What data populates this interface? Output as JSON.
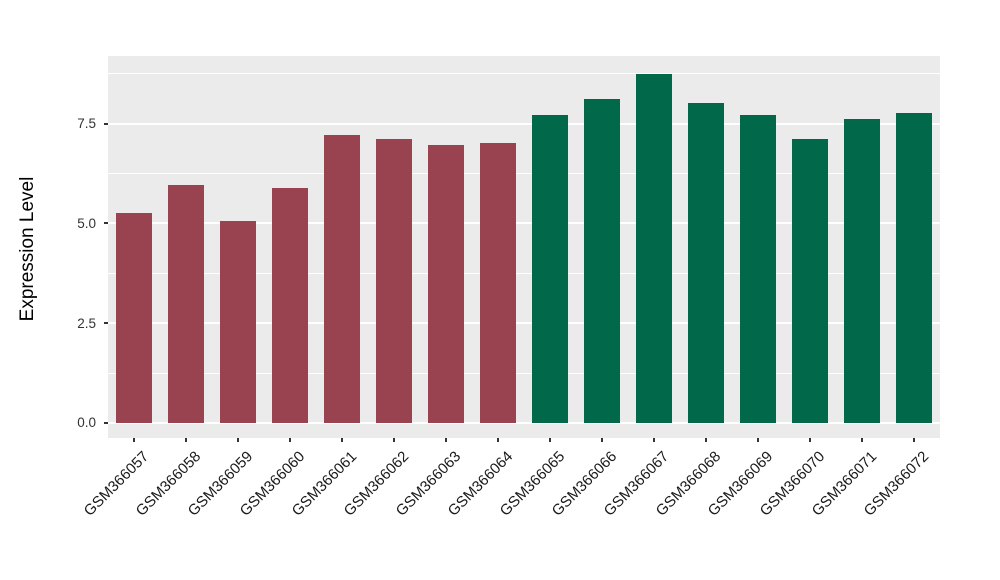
{
  "figure": {
    "background_color": "#ffffff"
  },
  "chart_data": {
    "type": "bar",
    "title": "",
    "xlabel": "",
    "ylabel": "Expression Level",
    "categories": [
      "GSM366057",
      "GSM366058",
      "GSM366059",
      "GSM366060",
      "GSM366061",
      "GSM366062",
      "GSM366063",
      "GSM366064",
      "GSM366065",
      "GSM366066",
      "GSM366067",
      "GSM366068",
      "GSM366069",
      "GSM366070",
      "GSM366071",
      "GSM366072"
    ],
    "values": [
      5.27,
      5.97,
      5.07,
      5.9,
      7.21,
      7.12,
      6.98,
      7.02,
      7.73,
      8.13,
      8.74,
      8.01,
      7.71,
      7.13,
      7.63,
      7.78
    ],
    "bar_colors": [
      "#9A4350",
      "#9A4350",
      "#9A4350",
      "#9A4350",
      "#9A4350",
      "#9A4350",
      "#9A4350",
      "#9A4350",
      "#01684A",
      "#01684A",
      "#01684A",
      "#01684A",
      "#01684A",
      "#01684A",
      "#01684A",
      "#01684A"
    ],
    "group_colors": {
      "left_group": "#9A4350",
      "right_group": "#01684A"
    },
    "yticks": [
      0.0,
      2.5,
      5.0,
      7.5
    ],
    "ytick_labels": [
      "0.0",
      "2.5",
      "5.0",
      "7.5"
    ],
    "minor_gridlines": [
      1.25,
      3.75,
      6.25,
      8.75
    ],
    "ylim": [
      -0.38,
      9.2
    ],
    "grid": true,
    "legend": "none",
    "panel_background": "#EBEBEB",
    "gridline_color": "#ffffff",
    "tick_color": "#333333"
  }
}
